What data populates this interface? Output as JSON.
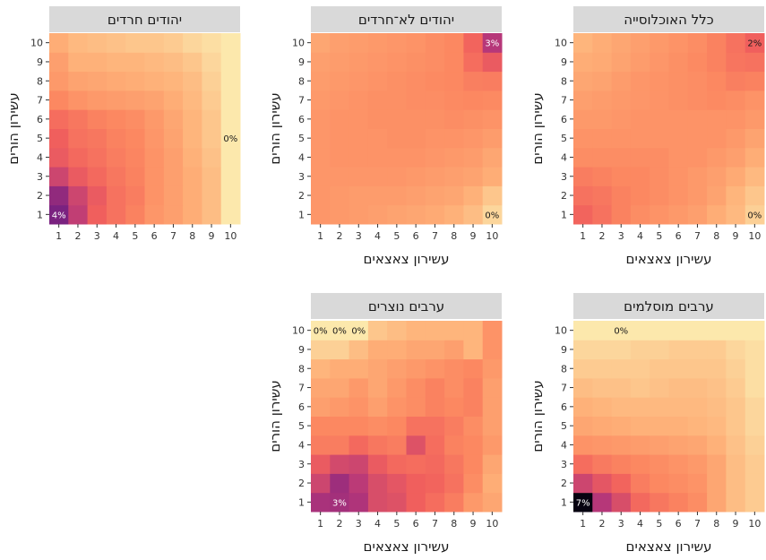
{
  "colors": {
    "strip": "#d9d9d9",
    "scale": [
      "#000004",
      "#2c115f",
      "#721f81",
      "#b73779",
      "#f1605d",
      "#fc8961",
      "#feb078",
      "#fcd59b",
      "#fcfdbf"
    ]
  },
  "value_range": [
    0,
    7
  ],
  "chart_data": [
    {
      "type": "heatmap",
      "title": "כלל האוכלוסייה",
      "xlabel": "עשירון צאצאים",
      "ylabel": "עשירון הורים",
      "x": [
        1,
        2,
        3,
        4,
        5,
        6,
        7,
        8,
        9,
        10
      ],
      "y": [
        1,
        2,
        3,
        4,
        5,
        6,
        7,
        8,
        9,
        10
      ],
      "values": [
        [
          1.9,
          1.6,
          1.3,
          1.1,
          1.0,
          0.9,
          0.8,
          0.6,
          0.45,
          0.2
        ],
        [
          1.6,
          1.5,
          1.3,
          1.2,
          1.1,
          1.0,
          0.9,
          0.75,
          0.5,
          0.3
        ],
        [
          1.4,
          1.3,
          1.2,
          1.2,
          1.1,
          1.0,
          0.9,
          0.8,
          0.65,
          0.45
        ],
        [
          1.1,
          1.1,
          1.1,
          1.1,
          1.1,
          1.0,
          1.0,
          0.9,
          0.8,
          0.6
        ],
        [
          1.0,
          1.0,
          1.0,
          1.0,
          1.0,
          1.0,
          1.0,
          1.0,
          0.9,
          0.75
        ],
        [
          0.9,
          0.9,
          0.95,
          1.0,
          1.0,
          1.0,
          1.0,
          1.0,
          1.0,
          0.9
        ],
        [
          0.8,
          0.85,
          0.9,
          0.95,
          1.0,
          1.05,
          1.1,
          1.15,
          1.1,
          1.0
        ],
        [
          0.7,
          0.75,
          0.85,
          0.95,
          1.0,
          1.05,
          1.1,
          1.2,
          1.35,
          1.3
        ],
        [
          0.6,
          0.65,
          0.75,
          0.85,
          0.95,
          1.05,
          1.15,
          1.3,
          1.55,
          1.6
        ],
        [
          0.5,
          0.6,
          0.7,
          0.8,
          0.9,
          1.0,
          1.1,
          1.3,
          1.6,
          2.0
        ]
      ],
      "labels": [
        {
          "x": 10,
          "y": 1,
          "text": "0%"
        },
        {
          "x": 10,
          "y": 10,
          "text": "2%"
        }
      ]
    },
    {
      "type": "heatmap",
      "title": "יהודים לא־חרדים",
      "xlabel": "עשירון צאצאים",
      "ylabel": "עשירון הורים",
      "x": [
        1,
        2,
        3,
        4,
        5,
        6,
        7,
        8,
        9,
        10
      ],
      "y": [
        1,
        2,
        3,
        4,
        5,
        6,
        7,
        8,
        9,
        10
      ],
      "values": [
        [
          0.95,
          0.9,
          0.85,
          0.8,
          0.75,
          0.7,
          0.65,
          0.55,
          0.4,
          0.15
        ],
        [
          0.95,
          0.9,
          0.85,
          0.85,
          0.85,
          0.8,
          0.75,
          0.7,
          0.55,
          0.3
        ],
        [
          0.95,
          0.95,
          0.95,
          0.95,
          0.95,
          0.9,
          0.85,
          0.8,
          0.75,
          0.6
        ],
        [
          0.95,
          1.0,
          1.0,
          1.0,
          1.0,
          1.0,
          0.95,
          0.9,
          0.85,
          0.7
        ],
        [
          0.95,
          1.0,
          1.0,
          1.0,
          1.05,
          1.05,
          1.0,
          1.0,
          0.95,
          0.85
        ],
        [
          0.95,
          1.0,
          1.0,
          1.05,
          1.05,
          1.05,
          1.05,
          1.1,
          1.05,
          1.0
        ],
        [
          0.9,
          0.95,
          1.0,
          1.05,
          1.05,
          1.1,
          1.1,
          1.15,
          1.2,
          1.15
        ],
        [
          0.85,
          0.9,
          0.95,
          1.0,
          1.05,
          1.1,
          1.15,
          1.2,
          1.35,
          1.4
        ],
        [
          0.8,
          0.85,
          0.9,
          0.95,
          1.0,
          1.05,
          1.1,
          1.2,
          1.7,
          2.1
        ],
        [
          0.7,
          0.8,
          0.85,
          0.9,
          0.95,
          1.0,
          1.1,
          1.2,
          1.9,
          3.0
        ]
      ],
      "labels": [
        {
          "x": 10,
          "y": 1,
          "text": "0%"
        },
        {
          "x": 10,
          "y": 10,
          "text": "3%"
        }
      ]
    },
    {
      "type": "heatmap",
      "title": "יהודים חרדים",
      "xlabel": "",
      "ylabel": "עשירון הורים",
      "x": [
        1,
        2,
        3,
        4,
        5,
        6,
        7,
        8,
        9,
        10
      ],
      "y": [
        1,
        2,
        3,
        4,
        5,
        6,
        7,
        8,
        9,
        10
      ],
      "values": [
        [
          4.0,
          2.8,
          2.0,
          1.6,
          1.3,
          0.95,
          0.8,
          0.6,
          0.4,
          0.05
        ],
        [
          3.6,
          2.6,
          2.1,
          1.6,
          1.4,
          1.0,
          0.8,
          0.6,
          0.4,
          0.05
        ],
        [
          2.6,
          2.1,
          1.8,
          1.5,
          1.3,
          1.0,
          0.8,
          0.6,
          0.4,
          0.05
        ],
        [
          2.1,
          1.8,
          1.6,
          1.4,
          1.25,
          1.0,
          0.8,
          0.55,
          0.35,
          0.05
        ],
        [
          2.0,
          1.6,
          1.5,
          1.3,
          1.2,
          0.95,
          0.75,
          0.5,
          0.3,
          0.05
        ],
        [
          1.7,
          1.5,
          1.3,
          1.2,
          1.1,
          0.9,
          0.7,
          0.5,
          0.3,
          0.05
        ],
        [
          1.2,
          1.0,
          0.9,
          0.85,
          0.8,
          0.75,
          0.6,
          0.45,
          0.25,
          0.05
        ],
        [
          0.9,
          0.75,
          0.7,
          0.65,
          0.6,
          0.55,
          0.5,
          0.4,
          0.2,
          0.05
        ],
        [
          0.8,
          0.55,
          0.55,
          0.5,
          0.5,
          0.45,
          0.4,
          0.3,
          0.15,
          0.05
        ],
        [
          0.6,
          0.45,
          0.4,
          0.35,
          0.3,
          0.3,
          0.25,
          0.15,
          0.1,
          0.05
        ]
      ],
      "labels": [
        {
          "x": 1,
          "y": 1,
          "text": "4%"
        },
        {
          "x": 10,
          "y": 5,
          "text": "0%"
        }
      ]
    },
    {
      "type": "heatmap",
      "title": "ערבים מוסלמים",
      "xlabel": "עשירון צאצאים",
      "ylabel": "עשירון הורים",
      "x": [
        1,
        2,
        3,
        4,
        5,
        6,
        7,
        8,
        9,
        10
      ],
      "y": [
        1,
        2,
        3,
        4,
        5,
        6,
        7,
        8,
        9,
        10
      ],
      "values": [
        [
          6.8,
          3.0,
          2.4,
          1.8,
          1.5,
          1.3,
          1.1,
          0.7,
          0.4,
          0.25
        ],
        [
          2.6,
          2.2,
          1.9,
          1.4,
          1.2,
          1.1,
          1.0,
          0.7,
          0.4,
          0.25
        ],
        [
          1.7,
          1.45,
          1.3,
          1.2,
          1.1,
          1.0,
          0.9,
          0.7,
          0.4,
          0.25
        ],
        [
          1.0,
          0.95,
          0.9,
          0.85,
          0.8,
          0.75,
          0.7,
          0.55,
          0.35,
          0.2
        ],
        [
          0.7,
          0.65,
          0.6,
          0.55,
          0.55,
          0.55,
          0.5,
          0.45,
          0.3,
          0.15
        ],
        [
          0.55,
          0.5,
          0.45,
          0.45,
          0.45,
          0.45,
          0.45,
          0.4,
          0.3,
          0.15
        ],
        [
          0.4,
          0.35,
          0.35,
          0.3,
          0.35,
          0.4,
          0.4,
          0.35,
          0.25,
          0.1
        ],
        [
          0.25,
          0.25,
          0.25,
          0.25,
          0.3,
          0.3,
          0.3,
          0.3,
          0.2,
          0.1
        ],
        [
          0.15,
          0.15,
          0.15,
          0.2,
          0.2,
          0.25,
          0.25,
          0.25,
          0.15,
          0.1
        ],
        [
          0.05,
          0.05,
          0.05,
          0.05,
          0.05,
          0.05,
          0.05,
          0.05,
          0.05,
          0.05
        ]
      ],
      "labels": [
        {
          "x": 1,
          "y": 1,
          "text": "7%"
        },
        {
          "x": 3,
          "y": 10,
          "text": "0%"
        }
      ]
    },
    {
      "type": "heatmap",
      "title": "ערבים נוצרים",
      "xlabel": "עשירון צאצאים",
      "ylabel": "עשירון הורים",
      "x": [
        1,
        2,
        3,
        4,
        5,
        6,
        7,
        8,
        9,
        10
      ],
      "y": [
        1,
        2,
        3,
        4,
        5,
        6,
        7,
        8,
        9,
        10
      ],
      "values": [
        [
          3.2,
          3.3,
          3.1,
          2.4,
          2.3,
          2.0,
          1.7,
          1.4,
          0.9,
          0.7
        ],
        [
          2.6,
          3.4,
          2.9,
          2.4,
          2.2,
          2.0,
          1.9,
          1.6,
          1.1,
          0.6
        ],
        [
          2.1,
          2.5,
          2.6,
          2.1,
          1.8,
          1.7,
          1.8,
          1.5,
          1.2,
          0.7
        ],
        [
          1.4,
          1.4,
          1.8,
          1.5,
          1.4,
          2.3,
          1.7,
          1.3,
          1.2,
          0.9
        ],
        [
          1.2,
          1.2,
          1.2,
          1.1,
          1.2,
          1.6,
          1.6,
          1.4,
          1.1,
          0.8
        ],
        [
          0.8,
          0.9,
          1.0,
          0.8,
          1.0,
          1.1,
          1.3,
          1.2,
          1.3,
          0.8
        ],
        [
          0.7,
          0.7,
          0.9,
          0.7,
          0.9,
          1.1,
          1.3,
          1.1,
          1.3,
          0.8
        ],
        [
          0.5,
          0.6,
          0.6,
          0.7,
          0.8,
          0.9,
          1.0,
          1.1,
          1.2,
          0.9
        ],
        [
          0.2,
          0.2,
          0.4,
          0.6,
          0.6,
          0.7,
          0.7,
          0.8,
          0.5,
          1.0
        ],
        [
          0.05,
          0.05,
          0.05,
          0.3,
          0.4,
          0.5,
          0.5,
          0.5,
          0.5,
          1.0
        ]
      ],
      "labels": [
        {
          "x": 2,
          "y": 1,
          "text": "3%"
        },
        {
          "x": 1,
          "y": 10,
          "text": "0%"
        },
        {
          "x": 2,
          "y": 10,
          "text": "0%"
        },
        {
          "x": 3,
          "y": 10,
          "text": "0%"
        }
      ]
    }
  ]
}
